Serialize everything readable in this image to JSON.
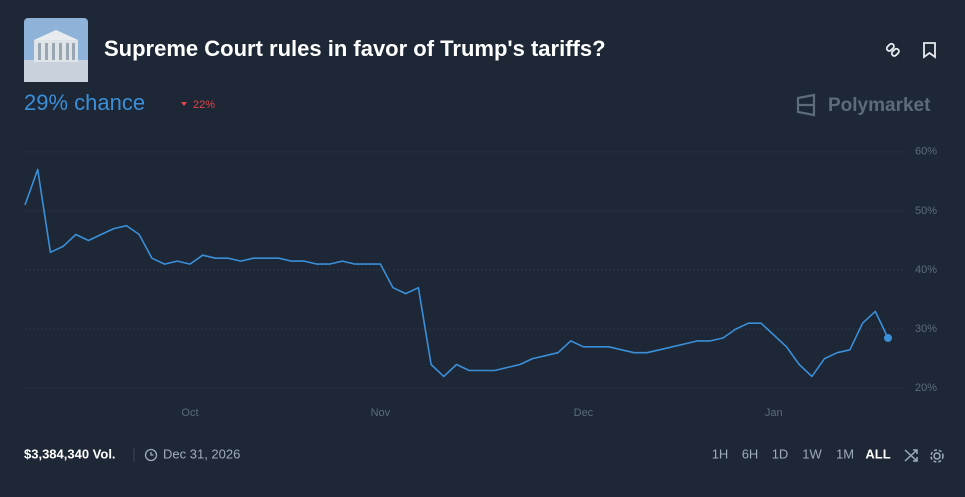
{
  "chart_data": {
    "type": "line",
    "title": "Supreme Court rules in favor of Trump's tariffs?",
    "categories": [
      null,
      null,
      null,
      null,
      null,
      null,
      null,
      null,
      null,
      null,
      null,
      null,
      null,
      "Oct",
      null,
      null,
      null,
      null,
      null,
      null,
      null,
      null,
      null,
      null,
      null,
      null,
      null,
      null,
      "Nov",
      null,
      null,
      null,
      null,
      null,
      null,
      null,
      null,
      null,
      null,
      null,
      null,
      null,
      null,
      null,
      "Dec",
      null,
      null,
      null,
      null,
      null,
      null,
      null,
      null,
      null,
      null,
      null,
      null,
      null,
      null,
      "Jan",
      null,
      null,
      null,
      null,
      null,
      null,
      null,
      null,
      null
    ],
    "values": [
      51,
      57,
      43,
      44,
      46,
      45,
      46,
      47,
      47.5,
      46,
      42,
      41,
      41.5,
      41,
      42.5,
      42,
      42,
      41.5,
      42,
      42,
      42,
      41.5,
      41.5,
      41,
      41,
      41.5,
      41,
      41,
      41,
      37,
      36,
      37,
      24,
      22,
      24,
      23,
      23,
      23,
      23.5,
      24,
      25,
      25.5,
      26,
      28,
      27,
      27,
      27,
      26.5,
      26,
      26,
      26.5,
      27,
      27.5,
      28,
      28,
      28.5,
      30,
      31,
      31,
      29,
      27,
      24,
      22,
      25,
      26,
      26.5,
      31,
      33,
      28.5
    ],
    "color": "#3b8fd9",
    "ylim": [
      18,
      62
    ],
    "yticks": [
      {
        "value": 20,
        "label": "20%"
      },
      {
        "value": 30,
        "label": "30%"
      },
      {
        "value": 40,
        "label": "40%"
      },
      {
        "value": 50,
        "label": "50%"
      },
      {
        "value": 60,
        "label": "60%"
      }
    ],
    "grid": true
  },
  "header": {
    "chance": "29% chance",
    "change": "22%",
    "brand": "Polymarket"
  },
  "footer": {
    "volume": "$3,384,340 Vol.",
    "end_date": "Dec 31, 2026",
    "ranges": [
      "1H",
      "6H",
      "1D",
      "1W",
      "1M",
      "ALL"
    ]
  }
}
